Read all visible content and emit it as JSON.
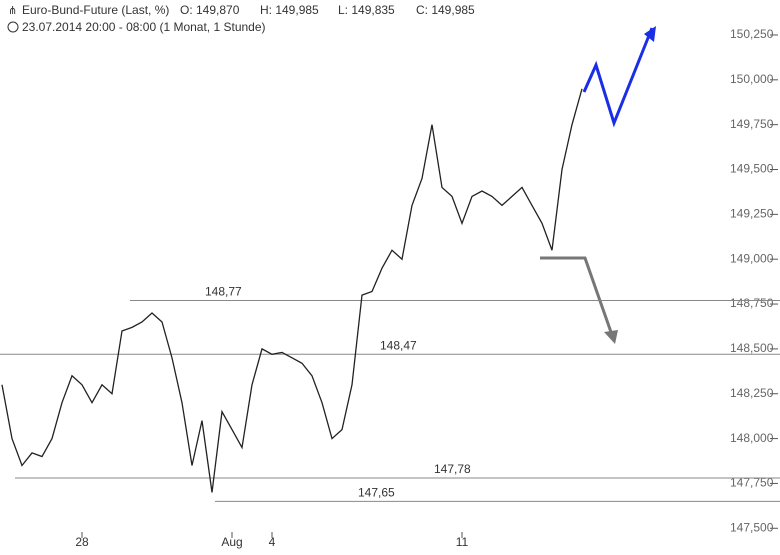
{
  "chart_data": {
    "type": "line",
    "title": "Euro-Bund-Future (Last, %)",
    "ohlc_texts": [
      "O: 149,870",
      "H: 149,985",
      "L: 149,835",
      "C: 149,985"
    ],
    "subtitle": "23.07.2014 20:00 - 08:00 (1 Monat, 1 Stunde)",
    "categories": [
      null,
      null,
      null,
      null,
      null,
      null,
      null,
      null,
      "28",
      null,
      null,
      null,
      null,
      null,
      null,
      null,
      null,
      null,
      null,
      null,
      null,
      null,
      null,
      "Aug",
      null,
      null,
      null,
      "4",
      null,
      null,
      null,
      null,
      null,
      null,
      null,
      null,
      null,
      null,
      null,
      null,
      null,
      null,
      null,
      null,
      null,
      null,
      "11",
      null,
      null,
      null,
      null,
      null,
      null,
      null,
      null,
      null,
      null,
      null,
      null
    ],
    "values": [
      148.3,
      148.0,
      147.85,
      147.92,
      147.9,
      148.0,
      148.2,
      148.35,
      148.3,
      148.2,
      148.3,
      148.25,
      148.6,
      148.62,
      148.65,
      148.7,
      148.65,
      148.45,
      148.2,
      147.85,
      148.1,
      147.7,
      148.15,
      148.05,
      147.95,
      148.3,
      148.5,
      148.47,
      148.48,
      148.45,
      148.42,
      148.35,
      148.2,
      148.0,
      148.05,
      148.3,
      148.8,
      148.82,
      148.95,
      149.05,
      149.0,
      149.3,
      149.45,
      149.75,
      149.4,
      149.35,
      149.2,
      149.35,
      149.38,
      149.35,
      149.3,
      149.35,
      149.4,
      149.3,
      149.2,
      149.05,
      149.5,
      149.75,
      149.95
    ],
    "color": "#222222",
    "ylim": [
      147.39,
      150.445
    ],
    "yticks": [
      {
        "value": 147.5,
        "label": "147,500"
      },
      {
        "value": 147.75,
        "label": "147,750"
      },
      {
        "value": 148.0,
        "label": "148,000"
      },
      {
        "value": 148.25,
        "label": "148,250"
      },
      {
        "value": 148.5,
        "label": "148,500"
      },
      {
        "value": 148.75,
        "label": "148,750"
      },
      {
        "value": 149.0,
        "label": "149,000"
      },
      {
        "value": 149.25,
        "label": "149,250"
      },
      {
        "value": 149.5,
        "label": "149,500"
      },
      {
        "value": 149.75,
        "label": "149,750"
      },
      {
        "value": 150.0,
        "label": "150,000"
      },
      {
        "value": 150.25,
        "label": "150,250"
      }
    ],
    "levels": [
      {
        "value": 148.77,
        "label": "148,77"
      },
      {
        "value": 148.47,
        "label": "148,47"
      },
      {
        "value": 147.78,
        "label": "147,78"
      },
      {
        "value": 147.65,
        "label": "147,65"
      }
    ],
    "level_color": "#888888",
    "grid": false
  }
}
